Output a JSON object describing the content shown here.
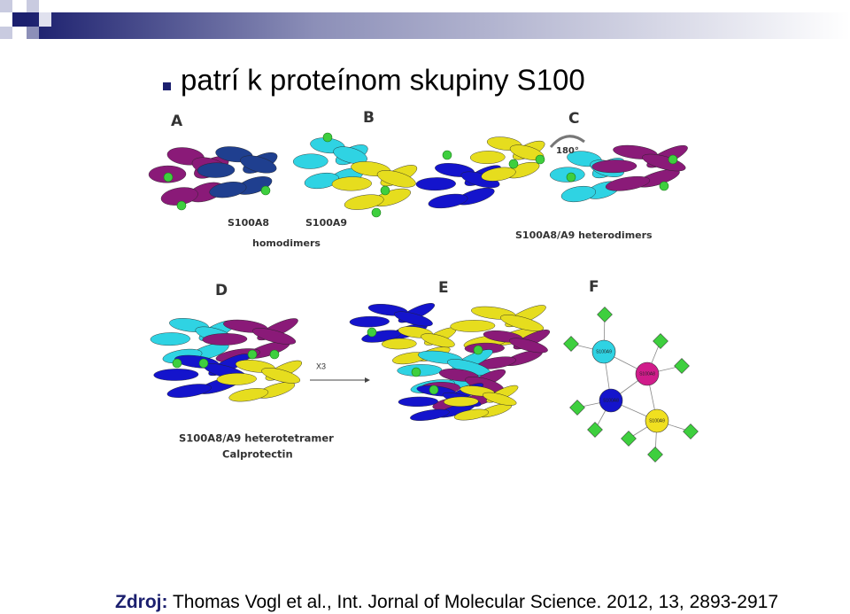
{
  "title": "patrí k proteínom skupiny S100",
  "figure": {
    "panel_labels": [
      "A",
      "B",
      "C",
      "D",
      "E",
      "F"
    ],
    "monomer_labels": [
      "S100A8",
      "S100A9"
    ],
    "homodimers": "homodimers",
    "heterodimers": "S100A8/A9 heterodimers",
    "rotation": "180°",
    "multiplier": "X3",
    "heterotetramer": "S100A8/A9 heterotetramer",
    "calprotectin": "Calprotectin",
    "network_nodes": [
      "S100A9",
      "S100A8",
      "S100A8",
      "S100A9"
    ]
  },
  "source": {
    "label": "Zdroj:",
    "text": " Thomas Vogl et al., Int. Jornal of Molecular Science. 2012, 13, 2893-2917"
  }
}
